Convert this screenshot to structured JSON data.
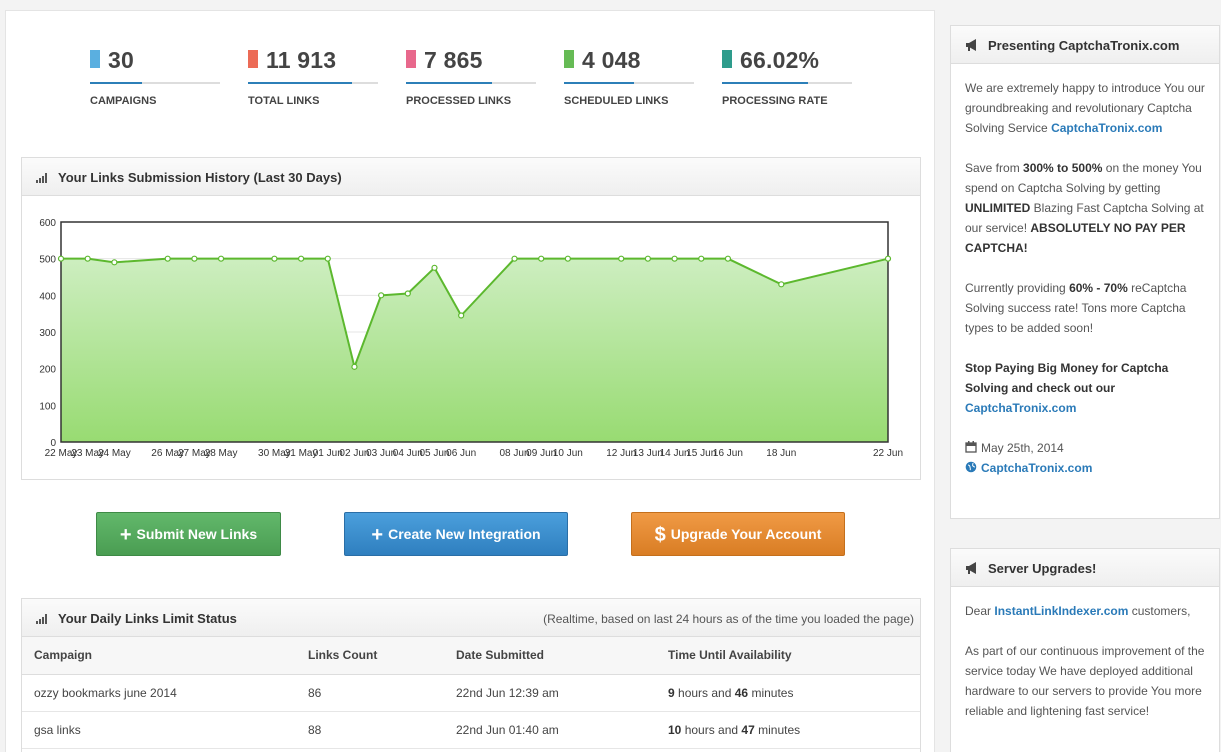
{
  "stats": [
    {
      "value": "30",
      "label": "CAMPAIGNS",
      "color": "#5aafe0"
    },
    {
      "value": "11 913",
      "label": "TOTAL LINKS",
      "color": "#ec6b56"
    },
    {
      "value": "7 865",
      "label": "PROCESSED LINKS",
      "color": "#e8688c"
    },
    {
      "value": "4 048",
      "label": "SCHEDULED LINKS",
      "color": "#66bb55"
    },
    {
      "value": "66.02%",
      "label": "PROCESSING RATE",
      "color": "#2e9c8c"
    }
  ],
  "history": {
    "title": "Your Links Submission History (Last 30 Days)"
  },
  "chart_data": {
    "type": "area",
    "x": [
      "22 May",
      "23 May",
      "24 May",
      "26 May",
      "27 May",
      "28 May",
      "30 May",
      "31 May",
      "01 Jun",
      "02 Jun",
      "03 Jun",
      "04 Jun",
      "05 Jun",
      "06 Jun",
      "08 Jun",
      "09 Jun",
      "10 Jun",
      "12 Jun",
      "13 Jun",
      "14 Jun",
      "15 Jun",
      "16 Jun",
      "18 Jun",
      "22 Jun"
    ],
    "x_day_index": [
      0,
      1,
      2,
      4,
      5,
      6,
      8,
      9,
      10,
      11,
      12,
      13,
      14,
      15,
      17,
      18,
      19,
      21,
      22,
      23,
      24,
      25,
      27,
      31
    ],
    "values": [
      500,
      500,
      490,
      500,
      500,
      500,
      500,
      500,
      500,
      205,
      400,
      405,
      475,
      345,
      500,
      500,
      500,
      500,
      500,
      500,
      500,
      500,
      430,
      500
    ],
    "ylim": [
      0,
      600
    ],
    "yticks": [
      0,
      100,
      200,
      300,
      400,
      500,
      600
    ],
    "grid": true,
    "line_color": "#5cb82e",
    "fill_top": "#cdeec0",
    "fill_bottom": "#98db72"
  },
  "buttons": {
    "submit": {
      "icon": "+",
      "label": "Submit New Links"
    },
    "integration": {
      "icon": "+",
      "label": "Create New Integration"
    },
    "upgrade": {
      "icon": "$",
      "label": "Upgrade Your Account"
    }
  },
  "daily": {
    "title": "Your Daily Links Limit Status",
    "note": "(Realtime, based on last 24 hours as of the time you loaded the page)",
    "columns": [
      "Campaign",
      "Links Count",
      "Date Submitted",
      "Time Until Availability"
    ],
    "rows": [
      {
        "campaign": "ozzy bookmarks june 2014",
        "count": "86",
        "date": "22nd Jun 12:39 am",
        "hours": "9",
        "hours_word": "hours and",
        "minutes": "46",
        "minutes_word": "minutes"
      },
      {
        "campaign": "gsa links",
        "count": "88",
        "date": "22nd Jun 01:40 am",
        "hours": "10",
        "hours_word": "hours and",
        "minutes": "47",
        "minutes_word": "minutes"
      }
    ]
  },
  "promo": {
    "title": "Presenting CaptchaTronix.com",
    "p1": "We are extremely happy to introduce You our groundbreaking and revolutionary Captcha Solving Service",
    "p1_link": "CaptchaTronix.com",
    "p2_a": "Save from",
    "p2_b": "300% to 500%",
    "p2_c": "on the money You spend on Captcha Solving by getting",
    "p2_d": "UNLIMITED",
    "p2_e": "Blazing Fast Captcha Solving at our service!",
    "p2_f": "ABSOLUTELY NO PAY PER CAPTCHA!",
    "p3_a": "Currently providing",
    "p3_b": "60% - 70%",
    "p3_c": "reCaptcha Solving success rate! Tons more Captcha types to be added soon!",
    "p4": "Stop Paying Big Money for Captcha Solving and check out our",
    "p4_link": "CaptchaTronix.com",
    "date": "May 25th, 2014",
    "site": "CaptchaTronix.com"
  },
  "server": {
    "title": "Server Upgrades!",
    "p1_a": "Dear",
    "p1_link": "InstantLinkIndexer.com",
    "p1_b": "customers,",
    "p2": "As part of our continuous improvement of the service today We have deployed additional hardware to our servers to provide You more reliable and lightening fast service!"
  },
  "icons": {
    "bars": "signal-bars-icon",
    "horn": "megaphone-icon",
    "calendar": "calendar-icon",
    "globe": "globe-icon"
  }
}
